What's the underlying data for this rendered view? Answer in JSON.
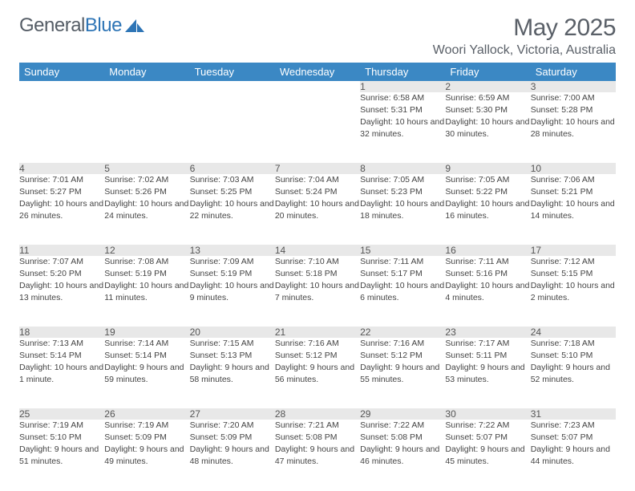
{
  "brand": {
    "part1": "General",
    "part2": "Blue"
  },
  "title": "May 2025",
  "location": "Woori Yallock, Victoria, Australia",
  "colors": {
    "header_bg": "#3b88c4",
    "header_fg": "#ffffff",
    "daynum_bg": "#e8e8e8",
    "text": "#444444",
    "brand_gray": "#555d66",
    "brand_blue": "#2e75b6",
    "page_bg": "#ffffff"
  },
  "fonts": {
    "family": "Arial",
    "title_size_pt": 22,
    "location_size_pt": 12,
    "header_size_pt": 10,
    "cell_size_pt": 8
  },
  "weekday_labels": [
    "Sunday",
    "Monday",
    "Tuesday",
    "Wednesday",
    "Thursday",
    "Friday",
    "Saturday"
  ],
  "weeks": [
    [
      null,
      null,
      null,
      null,
      {
        "n": "1",
        "sr": "Sunrise: 6:58 AM",
        "ss": "Sunset: 5:31 PM",
        "dl": "Daylight: 10 hours and 32 minutes."
      },
      {
        "n": "2",
        "sr": "Sunrise: 6:59 AM",
        "ss": "Sunset: 5:30 PM",
        "dl": "Daylight: 10 hours and 30 minutes."
      },
      {
        "n": "3",
        "sr": "Sunrise: 7:00 AM",
        "ss": "Sunset: 5:28 PM",
        "dl": "Daylight: 10 hours and 28 minutes."
      }
    ],
    [
      {
        "n": "4",
        "sr": "Sunrise: 7:01 AM",
        "ss": "Sunset: 5:27 PM",
        "dl": "Daylight: 10 hours and 26 minutes."
      },
      {
        "n": "5",
        "sr": "Sunrise: 7:02 AM",
        "ss": "Sunset: 5:26 PM",
        "dl": "Daylight: 10 hours and 24 minutes."
      },
      {
        "n": "6",
        "sr": "Sunrise: 7:03 AM",
        "ss": "Sunset: 5:25 PM",
        "dl": "Daylight: 10 hours and 22 minutes."
      },
      {
        "n": "7",
        "sr": "Sunrise: 7:04 AM",
        "ss": "Sunset: 5:24 PM",
        "dl": "Daylight: 10 hours and 20 minutes."
      },
      {
        "n": "8",
        "sr": "Sunrise: 7:05 AM",
        "ss": "Sunset: 5:23 PM",
        "dl": "Daylight: 10 hours and 18 minutes."
      },
      {
        "n": "9",
        "sr": "Sunrise: 7:05 AM",
        "ss": "Sunset: 5:22 PM",
        "dl": "Daylight: 10 hours and 16 minutes."
      },
      {
        "n": "10",
        "sr": "Sunrise: 7:06 AM",
        "ss": "Sunset: 5:21 PM",
        "dl": "Daylight: 10 hours and 14 minutes."
      }
    ],
    [
      {
        "n": "11",
        "sr": "Sunrise: 7:07 AM",
        "ss": "Sunset: 5:20 PM",
        "dl": "Daylight: 10 hours and 13 minutes."
      },
      {
        "n": "12",
        "sr": "Sunrise: 7:08 AM",
        "ss": "Sunset: 5:19 PM",
        "dl": "Daylight: 10 hours and 11 minutes."
      },
      {
        "n": "13",
        "sr": "Sunrise: 7:09 AM",
        "ss": "Sunset: 5:19 PM",
        "dl": "Daylight: 10 hours and 9 minutes."
      },
      {
        "n": "14",
        "sr": "Sunrise: 7:10 AM",
        "ss": "Sunset: 5:18 PM",
        "dl": "Daylight: 10 hours and 7 minutes."
      },
      {
        "n": "15",
        "sr": "Sunrise: 7:11 AM",
        "ss": "Sunset: 5:17 PM",
        "dl": "Daylight: 10 hours and 6 minutes."
      },
      {
        "n": "16",
        "sr": "Sunrise: 7:11 AM",
        "ss": "Sunset: 5:16 PM",
        "dl": "Daylight: 10 hours and 4 minutes."
      },
      {
        "n": "17",
        "sr": "Sunrise: 7:12 AM",
        "ss": "Sunset: 5:15 PM",
        "dl": "Daylight: 10 hours and 2 minutes."
      }
    ],
    [
      {
        "n": "18",
        "sr": "Sunrise: 7:13 AM",
        "ss": "Sunset: 5:14 PM",
        "dl": "Daylight: 10 hours and 1 minute."
      },
      {
        "n": "19",
        "sr": "Sunrise: 7:14 AM",
        "ss": "Sunset: 5:14 PM",
        "dl": "Daylight: 9 hours and 59 minutes."
      },
      {
        "n": "20",
        "sr": "Sunrise: 7:15 AM",
        "ss": "Sunset: 5:13 PM",
        "dl": "Daylight: 9 hours and 58 minutes."
      },
      {
        "n": "21",
        "sr": "Sunrise: 7:16 AM",
        "ss": "Sunset: 5:12 PM",
        "dl": "Daylight: 9 hours and 56 minutes."
      },
      {
        "n": "22",
        "sr": "Sunrise: 7:16 AM",
        "ss": "Sunset: 5:12 PM",
        "dl": "Daylight: 9 hours and 55 minutes."
      },
      {
        "n": "23",
        "sr": "Sunrise: 7:17 AM",
        "ss": "Sunset: 5:11 PM",
        "dl": "Daylight: 9 hours and 53 minutes."
      },
      {
        "n": "24",
        "sr": "Sunrise: 7:18 AM",
        "ss": "Sunset: 5:10 PM",
        "dl": "Daylight: 9 hours and 52 minutes."
      }
    ],
    [
      {
        "n": "25",
        "sr": "Sunrise: 7:19 AM",
        "ss": "Sunset: 5:10 PM",
        "dl": "Daylight: 9 hours and 51 minutes."
      },
      {
        "n": "26",
        "sr": "Sunrise: 7:19 AM",
        "ss": "Sunset: 5:09 PM",
        "dl": "Daylight: 9 hours and 49 minutes."
      },
      {
        "n": "27",
        "sr": "Sunrise: 7:20 AM",
        "ss": "Sunset: 5:09 PM",
        "dl": "Daylight: 9 hours and 48 minutes."
      },
      {
        "n": "28",
        "sr": "Sunrise: 7:21 AM",
        "ss": "Sunset: 5:08 PM",
        "dl": "Daylight: 9 hours and 47 minutes."
      },
      {
        "n": "29",
        "sr": "Sunrise: 7:22 AM",
        "ss": "Sunset: 5:08 PM",
        "dl": "Daylight: 9 hours and 46 minutes."
      },
      {
        "n": "30",
        "sr": "Sunrise: 7:22 AM",
        "ss": "Sunset: 5:07 PM",
        "dl": "Daylight: 9 hours and 45 minutes."
      },
      {
        "n": "31",
        "sr": "Sunrise: 7:23 AM",
        "ss": "Sunset: 5:07 PM",
        "dl": "Daylight: 9 hours and 44 minutes."
      }
    ]
  ]
}
